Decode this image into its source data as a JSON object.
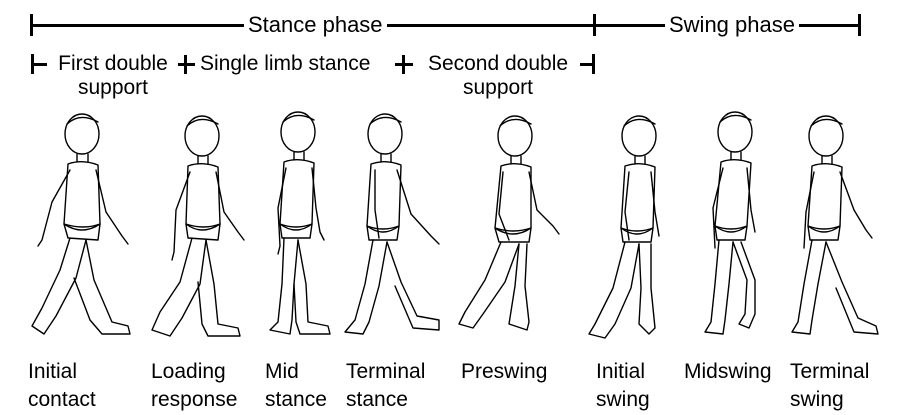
{
  "header": {
    "stance_phase": "Stance phase",
    "swing_phase": "Swing phase",
    "first_double_support_line1": "First double",
    "first_double_support_line2": "support",
    "single_limb_stance": "Single limb stance",
    "second_double_support_line1": "Second double",
    "second_double_support_line2": "support"
  },
  "figures": [
    {
      "line1": "Initial",
      "line2": "contact"
    },
    {
      "line1": "Loading",
      "line2": "response"
    },
    {
      "line1": "Mid",
      "line2": "stance"
    },
    {
      "line1": "Terminal",
      "line2": "stance"
    },
    {
      "line1": "Preswing",
      "line2": ""
    },
    {
      "line1": "Initial",
      "line2": "swing"
    },
    {
      "line1": "Midswing",
      "line2": ""
    },
    {
      "line1": "Terminal",
      "line2": "swing"
    }
  ]
}
